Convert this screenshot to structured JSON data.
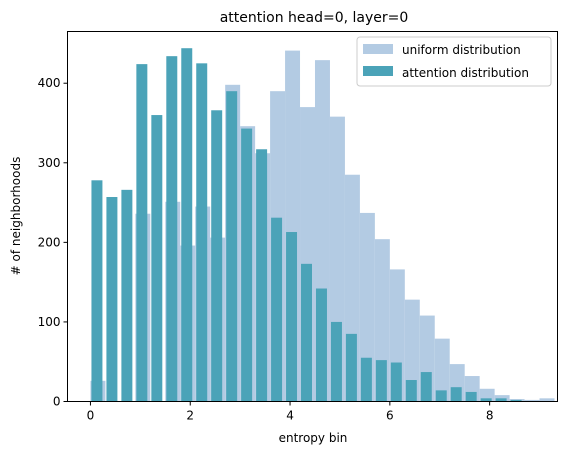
{
  "chart_data": {
    "type": "bar",
    "title": "attention head=0, layer=0",
    "xlabel": "entropy bin",
    "ylabel": "# of neighborhoods",
    "xlim": [
      -0.46,
      9.36
    ],
    "ylim": [
      0,
      465
    ],
    "xticks": [
      0,
      2,
      4,
      6,
      8
    ],
    "yticks": [
      0,
      100,
      200,
      300,
      400
    ],
    "legend_position": "upper right",
    "series": [
      {
        "name": "uniform distribution",
        "color": "#b3cbe3",
        "bar_width": 0.3,
        "x": [
          0.15,
          0.45,
          0.75,
          1.05,
          1.35,
          1.65,
          1.95,
          2.25,
          2.55,
          2.85,
          3.15,
          3.45,
          3.75,
          4.05,
          4.35,
          4.65,
          4.95,
          5.25,
          5.55,
          5.85,
          6.15,
          6.45,
          6.75,
          7.05,
          7.35,
          7.65,
          7.95,
          8.25,
          8.55,
          8.85,
          9.15
        ],
        "values": [
          26,
          0,
          0,
          236,
          0,
          251,
          196,
          245,
          206,
          398,
          346,
          312,
          390,
          441,
          370,
          429,
          358,
          285,
          237,
          204,
          166,
          128,
          108,
          79,
          47,
          32,
          16,
          8,
          3,
          2,
          4
        ]
      },
      {
        "name": "attention distribution",
        "color": "#4ba3b8",
        "bar_width": 0.22,
        "x": [
          0.13,
          0.43,
          0.73,
          1.03,
          1.33,
          1.63,
          1.93,
          2.23,
          2.53,
          2.83,
          3.13,
          3.43,
          3.73,
          4.03,
          4.33,
          4.63,
          4.93,
          5.23,
          5.53,
          5.83,
          6.13,
          6.43,
          6.73,
          7.03,
          7.33,
          7.63,
          7.93,
          8.23,
          8.53
        ],
        "values": [
          278,
          257,
          266,
          424,
          360,
          434,
          444,
          425,
          366,
          390,
          343,
          317,
          231,
          213,
          173,
          142,
          100,
          85,
          55,
          52,
          49,
          27,
          37,
          14,
          18,
          12,
          4,
          4,
          2
        ]
      }
    ]
  }
}
